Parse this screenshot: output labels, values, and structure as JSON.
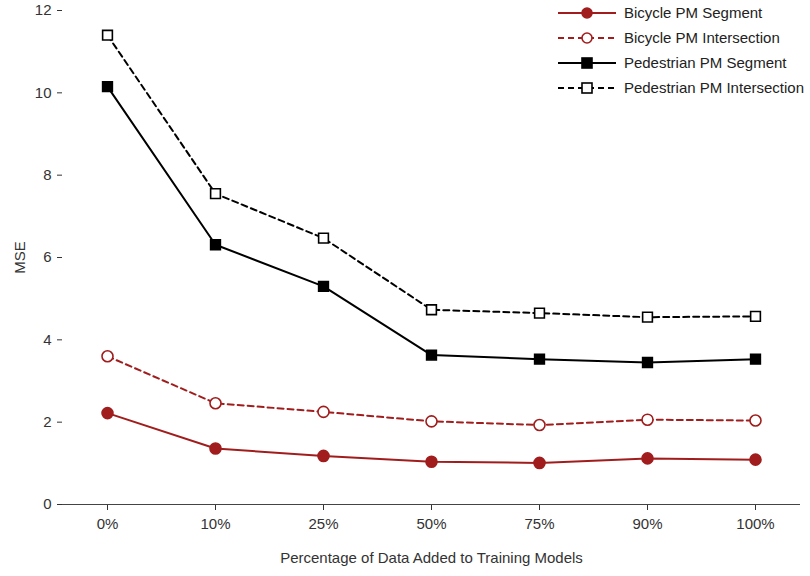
{
  "chart_data": {
    "type": "line",
    "x_label": "Percentage of Data Added to Training Models",
    "y_label": "MSE",
    "categories": [
      "0%",
      "10%",
      "25%",
      "50%",
      "75%",
      "90%",
      "100%"
    ],
    "ylim": [
      0,
      12
    ],
    "yticks": [
      0,
      2,
      4,
      6,
      8,
      10,
      12
    ],
    "grid": false,
    "legend": "upper right",
    "series": [
      {
        "name": "Bicycle PM Segment",
        "color": "#a11d1d",
        "marker": "circle",
        "line_style": "solid",
        "values": [
          2.22,
          1.36,
          1.18,
          1.04,
          1.01,
          1.12,
          1.09
        ]
      },
      {
        "name": "Bicycle PM Intersection",
        "color": "#a11d1d",
        "marker": "circle-open",
        "line_style": "dashed",
        "values": [
          3.6,
          2.46,
          2.25,
          2.02,
          1.93,
          2.06,
          2.04
        ]
      },
      {
        "name": "Pedestrian PM Segment",
        "color": "#000000",
        "marker": "square",
        "line_style": "solid",
        "values": [
          10.15,
          6.31,
          5.3,
          3.63,
          3.53,
          3.45,
          3.53
        ]
      },
      {
        "name": "Pedestrian PM Intersection",
        "color": "#000000",
        "marker": "square-open",
        "line_style": "dashed",
        "values": [
          11.4,
          7.55,
          6.47,
          4.73,
          4.65,
          4.55,
          4.57
        ]
      }
    ]
  }
}
